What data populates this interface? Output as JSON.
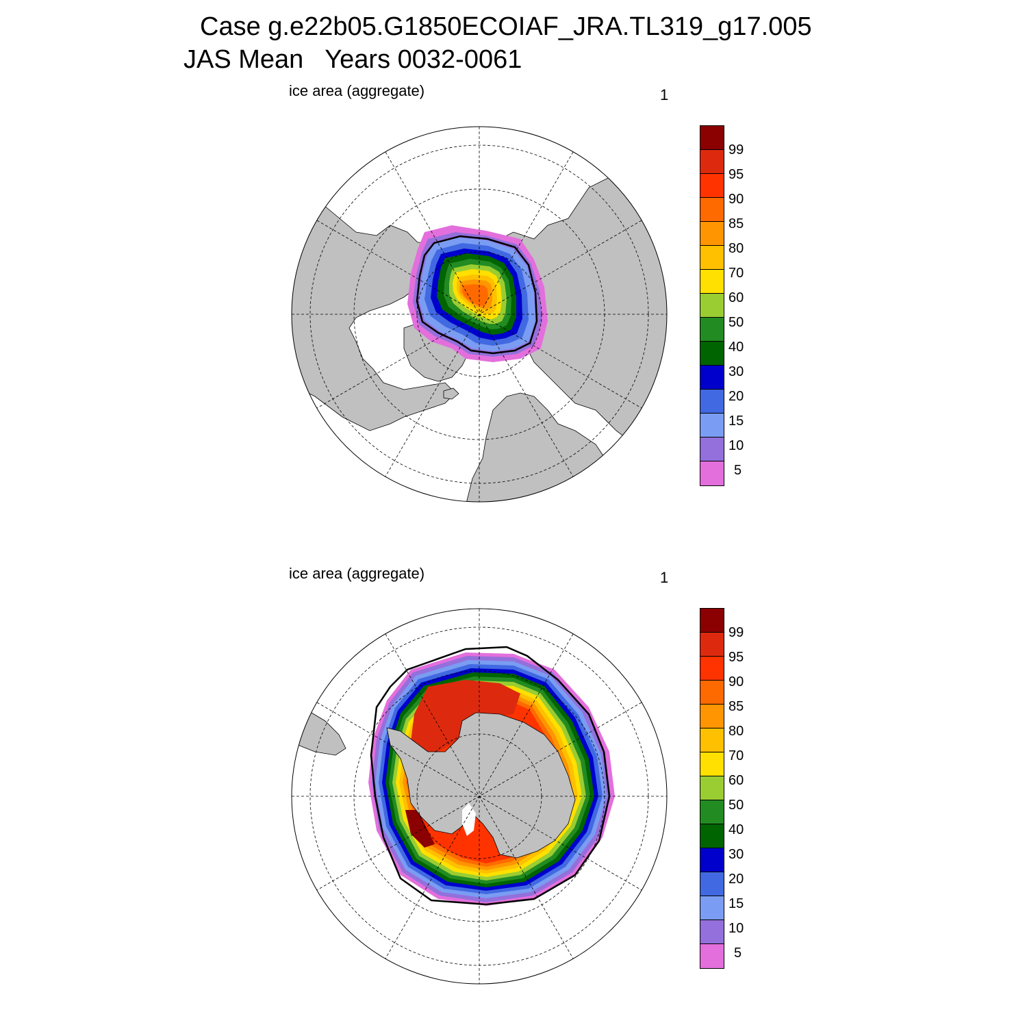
{
  "figure": {
    "title_line1": "Case g.e22b05.G1850ECOIAF_JRA.TL319_g17.005",
    "title_line2": "JAS Mean   Years 0032-0061"
  },
  "colors": {
    "land": "#c0c0c0",
    "ocean": "#ffffff",
    "colorbar": [
      "#e36fdc",
      "#9370db",
      "#7a9cf2",
      "#4169e1",
      "#0000cd",
      "#006400",
      "#228b22",
      "#9acd32",
      "#ffe000",
      "#ffc000",
      "#ff9500",
      "#ff6a00",
      "#ff3300",
      "#dd2a0e",
      "#8b0000"
    ]
  },
  "chart_data": [
    {
      "type": "heatmap",
      "projection": "north-polar-stereographic",
      "variable_label": "ice area  (aggregate)",
      "panel_number": "1",
      "units": "%",
      "contour_levels": [
        5,
        10,
        15,
        20,
        30,
        40,
        50,
        60,
        70,
        80,
        85,
        90,
        95,
        99
      ],
      "colorbar_labels": [
        "99",
        "95",
        "90",
        "85",
        "80",
        "70",
        "60",
        "50",
        "40",
        "30",
        "20",
        "15",
        "10",
        "5"
      ],
      "description_region": "Arctic"
    },
    {
      "type": "heatmap",
      "projection": "south-polar-stereographic",
      "variable_label": "ice area  (aggregate)",
      "panel_number": "1",
      "units": "%",
      "contour_levels": [
        5,
        10,
        15,
        20,
        30,
        40,
        50,
        60,
        70,
        80,
        85,
        90,
        95,
        99
      ],
      "colorbar_labels": [
        "99",
        "95",
        "90",
        "85",
        "80",
        "70",
        "60",
        "50",
        "40",
        "30",
        "20",
        "15",
        "10",
        "5"
      ],
      "description_region": "Antarctic"
    }
  ]
}
